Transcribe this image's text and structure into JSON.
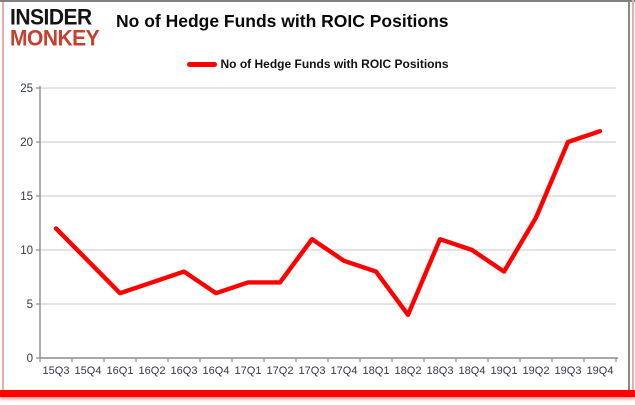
{
  "brand": {
    "line1": "INSIDER",
    "line2": "MONKEY"
  },
  "header": {
    "title": "No of Hedge Funds with ROIC Positions"
  },
  "legend": {
    "label": "No of Hedge Funds with ROIC Positions"
  },
  "colors": {
    "series_line": "#ff0000",
    "brand_red": "#c5402d",
    "axis": "#8c8c8c",
    "grid": "#c9c9c9",
    "tick_label": "#333a49",
    "bottom_bar": "#fe0202"
  },
  "chart_data": {
    "type": "line",
    "title": "No of Hedge Funds with ROIC Positions",
    "categories": [
      "15Q3",
      "15Q4",
      "16Q1",
      "16Q2",
      "16Q3",
      "16Q4",
      "17Q1",
      "17Q2",
      "17Q3",
      "17Q4",
      "18Q1",
      "18Q2",
      "18Q3",
      "18Q4",
      "19Q1",
      "19Q2",
      "19Q3",
      "19Q4"
    ],
    "series": [
      {
        "name": "No of Hedge Funds with ROIC Positions",
        "color": "#ff0000",
        "values": [
          12,
          9,
          6,
          7,
          8,
          6,
          7,
          7,
          11,
          9,
          8,
          4,
          11,
          10,
          8,
          13,
          20,
          21
        ]
      }
    ],
    "xlabel": "",
    "ylabel": "",
    "ylim": [
      0,
      25
    ],
    "ytick_step": 5,
    "grid": "horizontal",
    "legend_position": "top-center"
  }
}
